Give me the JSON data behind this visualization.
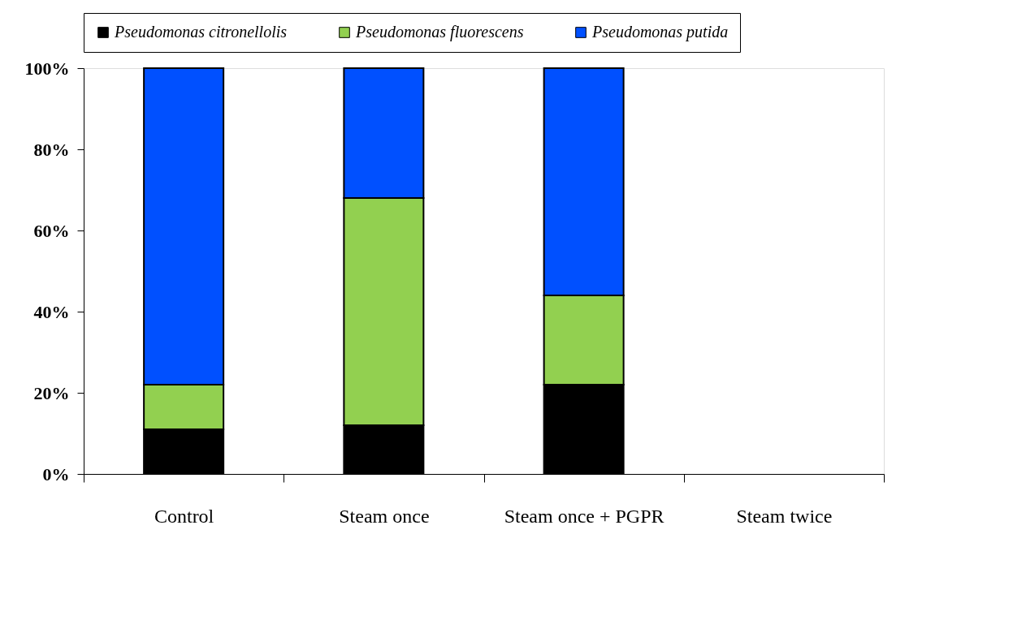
{
  "chart_data": {
    "type": "bar",
    "stacked": true,
    "categories": [
      "Control",
      "Steam once",
      "Steam once + PGPR",
      "Steam twice"
    ],
    "series": [
      {
        "name": "Pseudomonas citronellolis",
        "color": "#000000",
        "values": [
          11,
          12,
          22,
          null
        ]
      },
      {
        "name": "Pseudomonas fluorescens",
        "color": "#92d050",
        "values": [
          11,
          56,
          22,
          null
        ]
      },
      {
        "name": "Pseudomonas putida",
        "color": "#0050ff",
        "values": [
          78,
          32,
          56,
          null
        ]
      }
    ],
    "ylim": [
      0,
      100
    ],
    "yticks": [
      {
        "value": 0,
        "label": "0%"
      },
      {
        "value": 20,
        "label": "20%"
      },
      {
        "value": 40,
        "label": "40%"
      },
      {
        "value": 60,
        "label": "60%"
      },
      {
        "value": 80,
        "label": "80%"
      },
      {
        "value": 100,
        "label": "100%"
      }
    ],
    "grid": false,
    "legend": "top"
  }
}
